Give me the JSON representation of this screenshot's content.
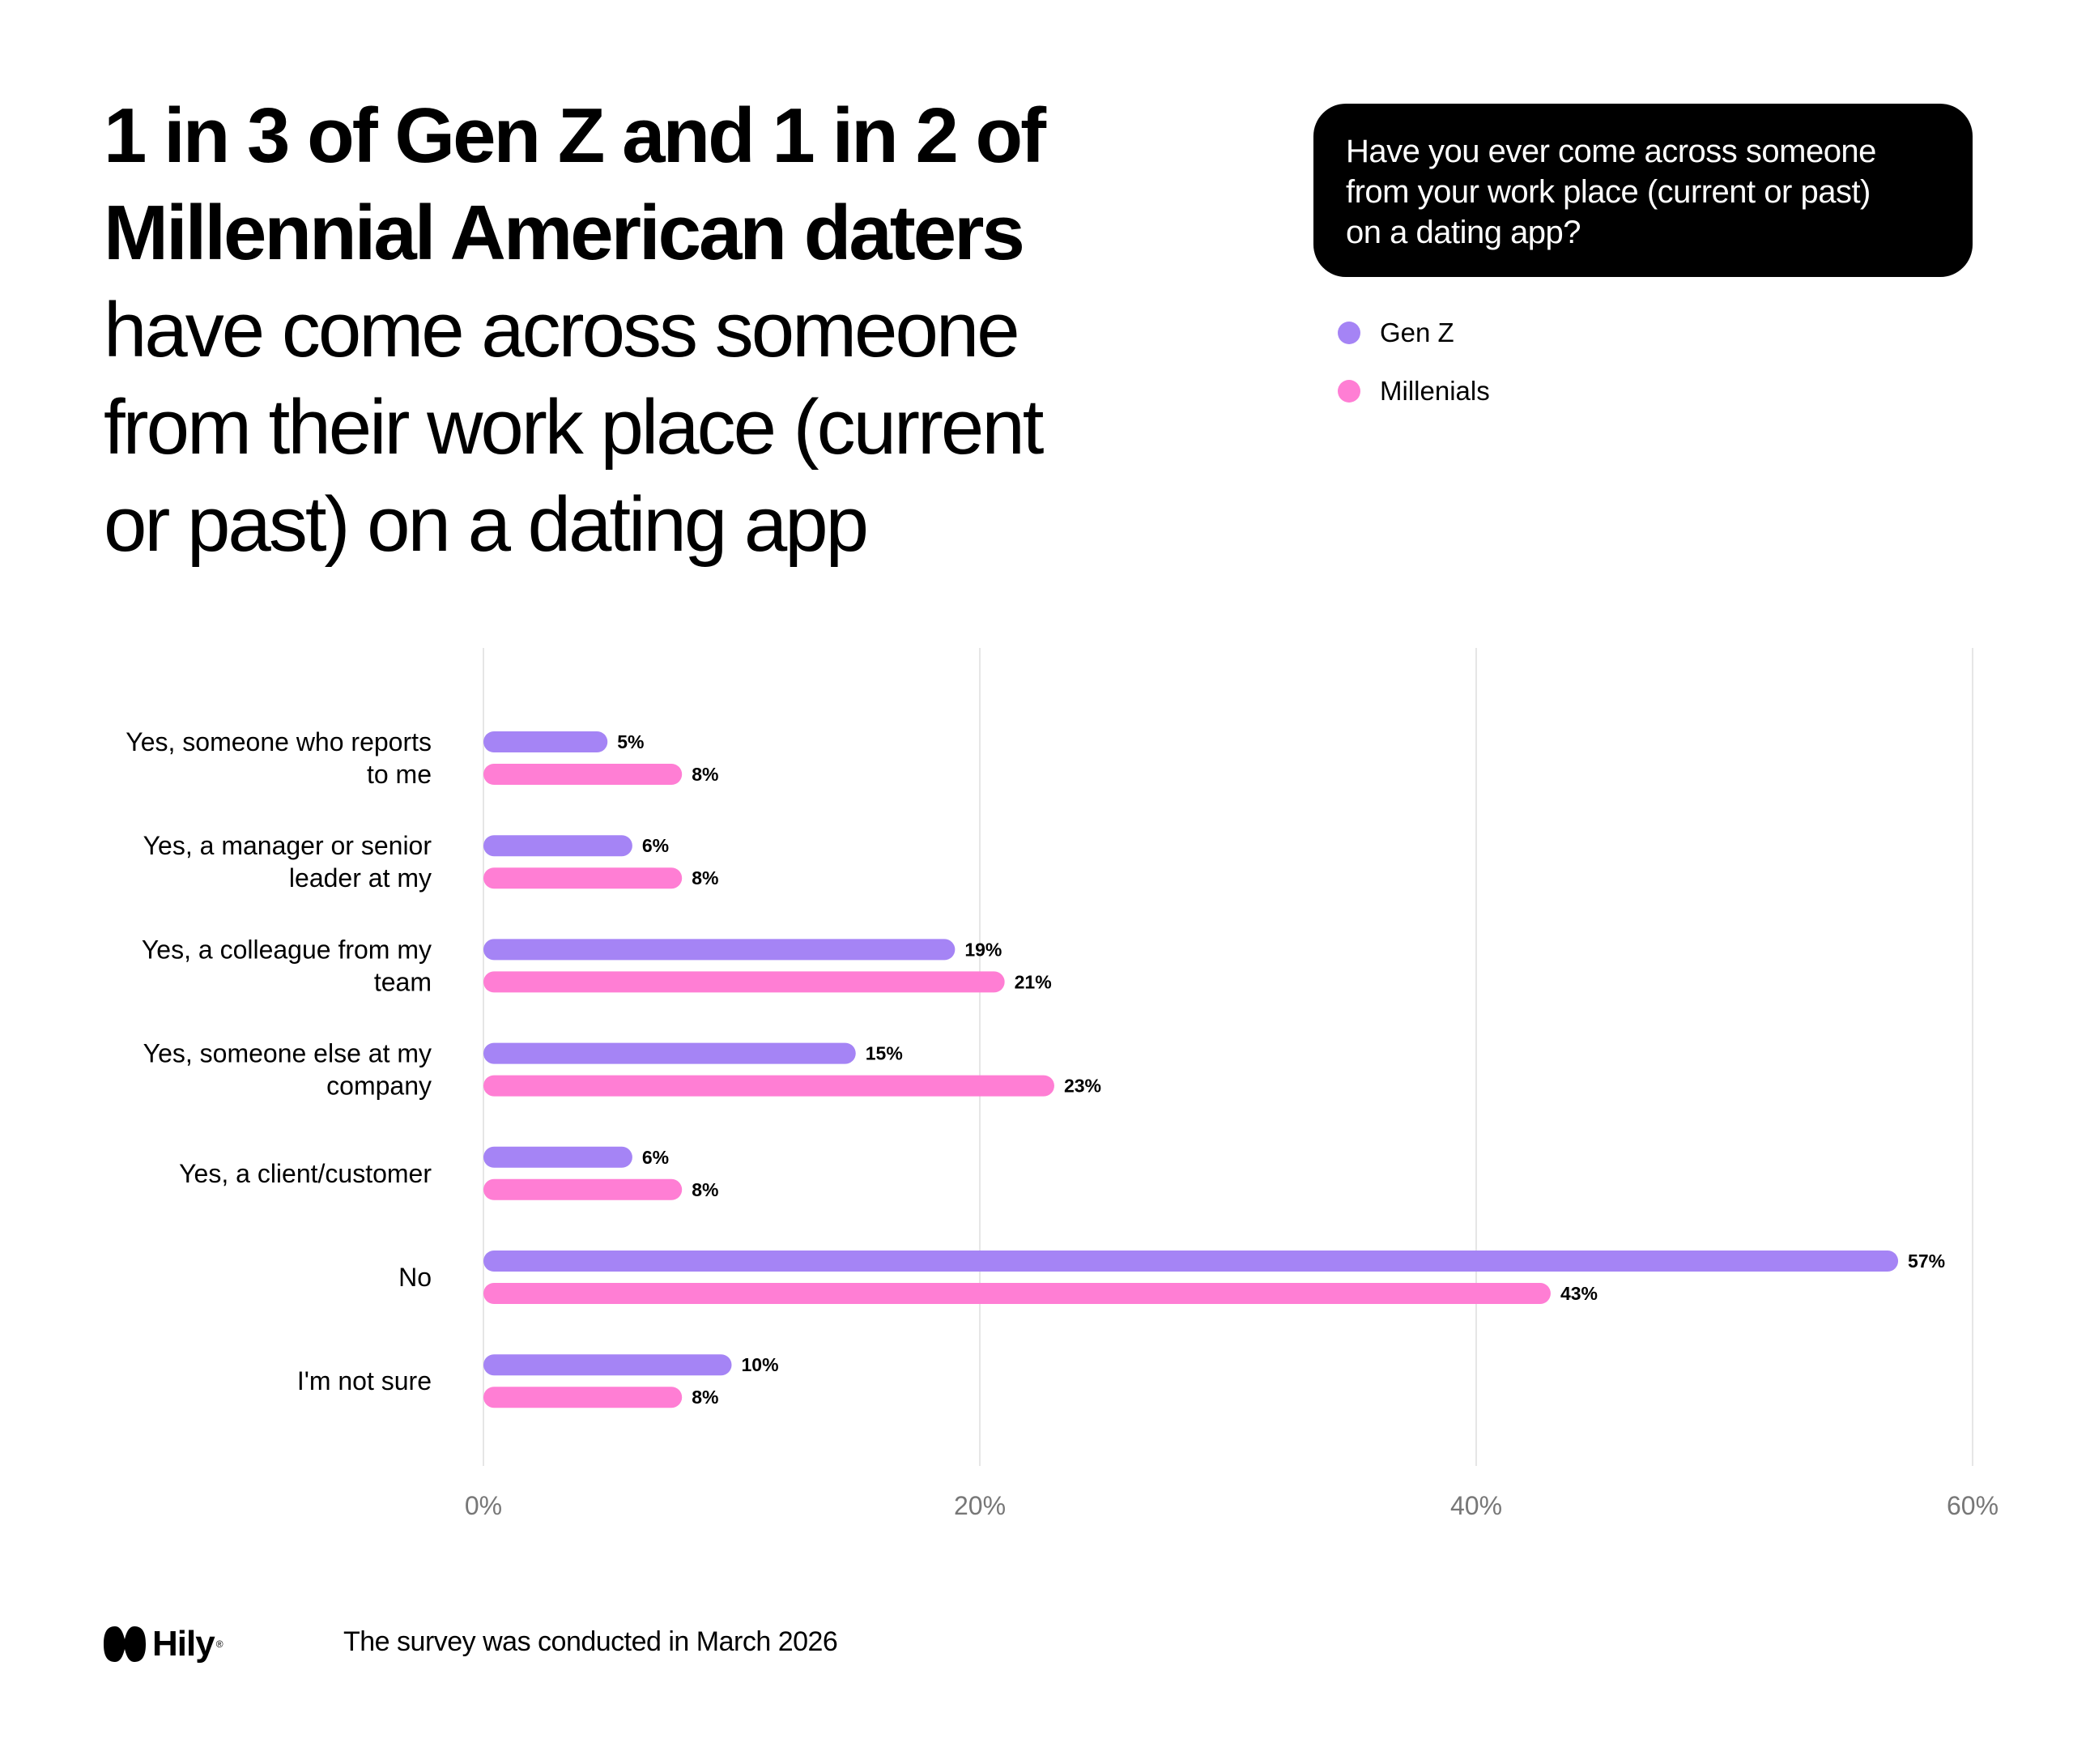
{
  "headline": {
    "bold_line1": "1 in 3 of Gen Z and 1 in 2 of",
    "bold_line2": "Millennial American daters",
    "regular_line1": "have come across someone",
    "regular_line2": "from their work place (current",
    "regular_line3": "or past) on a dating app"
  },
  "question": {
    "line1": "Have you ever come across someone",
    "line2": "from your work place (current or past)",
    "line3": "on a dating app?"
  },
  "legend": {
    "items": [
      {
        "label": "Gen Z",
        "color": "#a584f5"
      },
      {
        "label": "Millenials",
        "color": "#ff7ed4"
      }
    ]
  },
  "footer": {
    "brand": "Hily",
    "note": "The survey was conducted in March 2026"
  },
  "colors": {
    "gen_z": "#a584f5",
    "millennials": "#ff7ed4",
    "grid": "#e6e6e6",
    "tick_text": "#777777"
  },
  "chart_data": {
    "type": "bar",
    "orientation": "horizontal",
    "categories": [
      [
        "Yes, someone who reports",
        "to me"
      ],
      [
        "Yes, a manager or senior",
        "leader at my"
      ],
      [
        "Yes, a colleague from my",
        "team"
      ],
      [
        "Yes, someone else at my",
        "company"
      ],
      [
        "Yes, a client/customer"
      ],
      [
        "No"
      ],
      [
        "I'm not sure"
      ]
    ],
    "series": [
      {
        "name": "Gen Z",
        "values": [
          5,
          6,
          19,
          15,
          6,
          57,
          10
        ],
        "labels": [
          "5%",
          "6%",
          "19%",
          "15%",
          "6%",
          "57%",
          "10%"
        ]
      },
      {
        "name": "Millenials",
        "values": [
          8,
          8,
          21,
          23,
          8,
          43,
          8
        ],
        "labels": [
          "8%",
          "8%",
          "21%",
          "23%",
          "8%",
          "43%",
          "8%"
        ]
      }
    ],
    "xlim": [
      0,
      60
    ],
    "xticks": [
      0,
      20,
      40,
      60
    ],
    "xtick_labels": [
      "0%",
      "20%",
      "40%",
      "60%"
    ],
    "grid": true,
    "legend_position": "top-right"
  }
}
